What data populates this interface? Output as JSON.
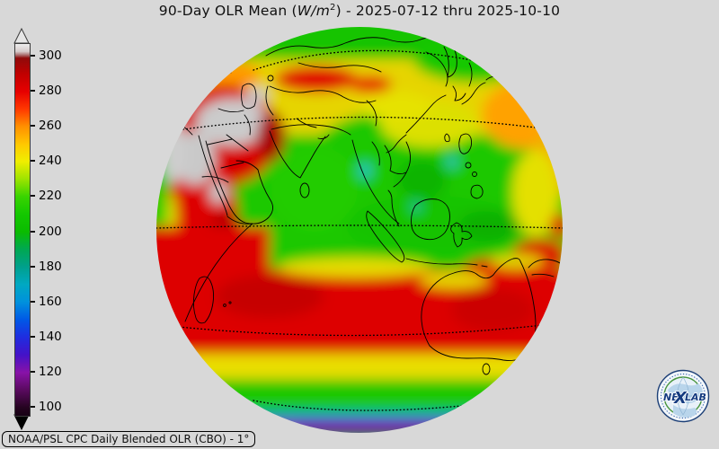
{
  "title": {
    "part1": "90-Day OLR Mean (",
    "math": "W/m",
    "sup": "2",
    "part2": ") - 2025-07-12 thru 2025-10-10"
  },
  "caption": "NOAA/PSL CPC Daily Blended OLR (CBO) - 1°",
  "logo": {
    "text_ne": "NE",
    "text_x": "X",
    "text_lab": "LAB"
  },
  "colorbar": {
    "ticks": [
      "300",
      "280",
      "260",
      "240",
      "220",
      "200",
      "180",
      "160",
      "140",
      "120",
      "100"
    ],
    "units": "W/m^2",
    "gradient_stops": [
      {
        "percent": 0,
        "color": "#ededed"
      },
      {
        "percent": 2,
        "color": "#d6cccc"
      },
      {
        "percent": 3,
        "color": "#a96a6a"
      },
      {
        "percent": 3.8,
        "color": "#8f0a0a"
      },
      {
        "percent": 8,
        "color": "#c00000"
      },
      {
        "percent": 12.8,
        "color": "#e60000"
      },
      {
        "percent": 17.5,
        "color": "#ff3800"
      },
      {
        "percent": 22.2,
        "color": "#ff9000"
      },
      {
        "percent": 27,
        "color": "#ffc800"
      },
      {
        "percent": 31.6,
        "color": "#f0ee00"
      },
      {
        "percent": 36.2,
        "color": "#a0e400"
      },
      {
        "percent": 41.1,
        "color": "#38d400"
      },
      {
        "percent": 45.7,
        "color": "#14c800"
      },
      {
        "percent": 50.5,
        "color": "#0abc00"
      },
      {
        "percent": 55.1,
        "color": "#00a850"
      },
      {
        "percent": 59.9,
        "color": "#00a08c"
      },
      {
        "percent": 64.7,
        "color": "#00a8c2"
      },
      {
        "percent": 69.3,
        "color": "#0092dc"
      },
      {
        "percent": 74.2,
        "color": "#0058e6"
      },
      {
        "percent": 78.7,
        "color": "#1e2ee0"
      },
      {
        "percent": 83.6,
        "color": "#4412c8"
      },
      {
        "percent": 88.4,
        "color": "#8812a8"
      },
      {
        "percent": 93,
        "color": "#5a0a60"
      },
      {
        "percent": 97.8,
        "color": "#250420"
      },
      {
        "percent": 100,
        "color": "#170114"
      }
    ]
  },
  "chart_data": {
    "type": "heatmap",
    "title": "90-Day OLR Mean (W/m^2) - 2025-07-12 thru 2025-10-10",
    "projection": "orthographic globe centered near 90E over the Indian Ocean / Maritime Continent",
    "colorbar": {
      "min": 100,
      "max": 300,
      "tick_interval": 20,
      "ticks": [
        300,
        280,
        260,
        240,
        220,
        200,
        180,
        160,
        140,
        120,
        100
      ],
      "units": "W/m^2",
      "over_color": "grey-white (>310)",
      "under_color": "black (<100)"
    },
    "graticule": "dotted latitude circles at 60N, 30N, 0, 30S, 60S",
    "regions_read_from_colors": [
      {
        "region": "Middle East / Arabian deserts / Tibetan plateau margin",
        "approx_olr": "300-310+ (grey/dark red)"
      },
      {
        "region": "Kazakhstan / central Asia band",
        "approx_olr": "250-280 (yellow-orange with red spots)"
      },
      {
        "region": "Siberia / high northern latitudes",
        "approx_olr": "210-230 (green)"
      },
      {
        "region": "India, Southeast Asia, Maritime Continent convection",
        "approx_olr": "195-225 (green, small cyan spots ~180)"
      },
      {
        "region": "Subtropical south Indian Ocean and Australia",
        "approx_olr": "275-295 (red)"
      },
      {
        "region": "Southern mid-latitude ocean",
        "approx_olr": "210-230 (green)"
      },
      {
        "region": "Antarctic rim at bottom limb",
        "approx_olr": "100-170 (cyan-blue-purple)"
      },
      {
        "region": "Northwest Pacific limb",
        "approx_olr": "250-270 (orange)"
      }
    ],
    "background_color": "#d8d8d8"
  }
}
